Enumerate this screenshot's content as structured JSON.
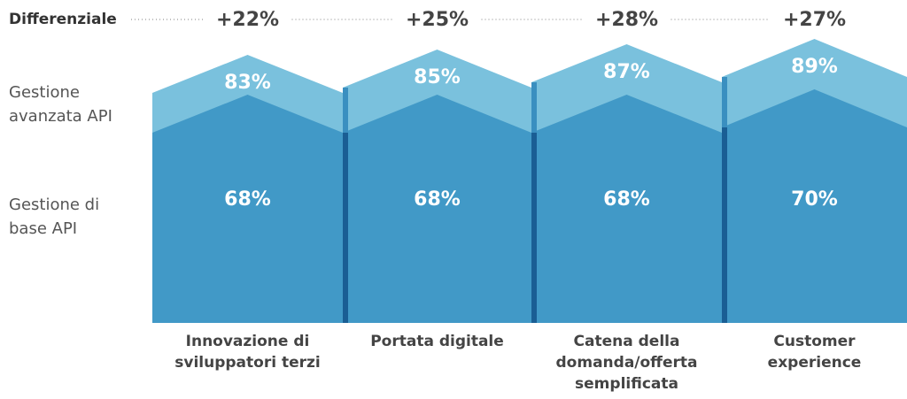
{
  "chart_data": {
    "type": "pennant",
    "categories": [
      "Innovazione di sviluppatori terzi",
      "Portata digitale",
      "Catena della domanda/offerta semplificata",
      "Customer experience"
    ],
    "series": [
      {
        "name": "Gestione di base API",
        "color": "#4199c7",
        "values": [
          68,
          68,
          68,
          70
        ],
        "value_labels": [
          "68%",
          "68%",
          "68%",
          "70%"
        ]
      },
      {
        "name": "Gestione avanzata API",
        "color": "#7ac1dd",
        "values": [
          83,
          85,
          87,
          89
        ],
        "value_labels": [
          "83%",
          "85%",
          "87%",
          "89%"
        ]
      }
    ],
    "differential": {
      "name": "Differenziale",
      "values": [
        22,
        25,
        28,
        27
      ],
      "value_labels": [
        "+22%",
        "+25%",
        "+28%",
        "+27%"
      ]
    }
  }
}
